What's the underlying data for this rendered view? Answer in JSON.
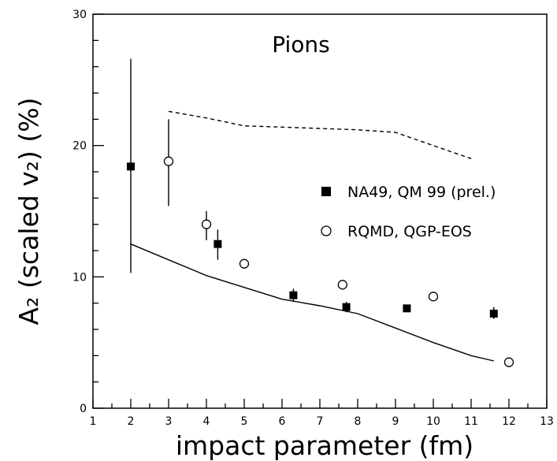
{
  "chart_data": {
    "type": "scatter",
    "title": "Pions",
    "xlabel": "impact parameter (fm)",
    "ylabel": "A₂ (scaled v₂) (%)",
    "xlim": [
      1,
      13
    ],
    "ylim": [
      0,
      30
    ],
    "x_ticks": [
      "1",
      "2",
      "3",
      "4",
      "5",
      "6",
      "7",
      "8",
      "9",
      "10",
      "11",
      "12",
      "13"
    ],
    "y_ticks": [
      "0",
      "10",
      "20",
      "30"
    ],
    "grid": false,
    "legend_position": "right",
    "series": [
      {
        "name": "NA49, QM 99 (prel.)",
        "marker": "filled-square",
        "color": "#000000",
        "points": [
          {
            "x": 2.0,
            "y": 18.4,
            "ylo": 10.3,
            "yhi": 26.6
          },
          {
            "x": 4.3,
            "y": 12.5,
            "ylo": 11.3,
            "yhi": 13.6
          },
          {
            "x": 6.3,
            "y": 8.6,
            "ylo": 8.1,
            "yhi": 9.1
          },
          {
            "x": 7.7,
            "y": 7.7,
            "ylo": 7.3,
            "yhi": 8.1
          },
          {
            "x": 9.3,
            "y": 7.6,
            "ylo": 7.4,
            "yhi": 7.8
          },
          {
            "x": 11.6,
            "y": 7.2,
            "ylo": 6.8,
            "yhi": 7.7
          }
        ]
      },
      {
        "name": "RQMD, QGP-EOS",
        "marker": "open-circle",
        "color": "#000000",
        "points": [
          {
            "x": 3.0,
            "y": 18.8,
            "ylo": 15.4,
            "yhi": 22.0
          },
          {
            "x": 4.0,
            "y": 14.0,
            "ylo": 12.8,
            "yhi": 15.0
          },
          {
            "x": 5.0,
            "y": 11.0
          },
          {
            "x": 7.6,
            "y": 9.4
          },
          {
            "x": 10.0,
            "y": 8.5
          },
          {
            "x": 12.0,
            "y": 3.5
          }
        ]
      }
    ],
    "curves": [
      {
        "style": "solid",
        "x": [
          2.0,
          3.0,
          4.0,
          5.0,
          6.0,
          7.0,
          8.0,
          9.0,
          10.0,
          11.0,
          11.6
        ],
        "y": [
          12.5,
          11.3,
          10.1,
          9.2,
          8.3,
          7.8,
          7.2,
          6.1,
          5.0,
          4.0,
          3.6
        ]
      },
      {
        "style": "dashed",
        "x": [
          3.0,
          4.0,
          5.0,
          6.0,
          7.0,
          8.0,
          9.0,
          10.0,
          11.0
        ],
        "y": [
          22.6,
          22.1,
          21.5,
          21.4,
          21.3,
          21.2,
          21.0,
          20.0,
          19.0
        ]
      }
    ]
  }
}
